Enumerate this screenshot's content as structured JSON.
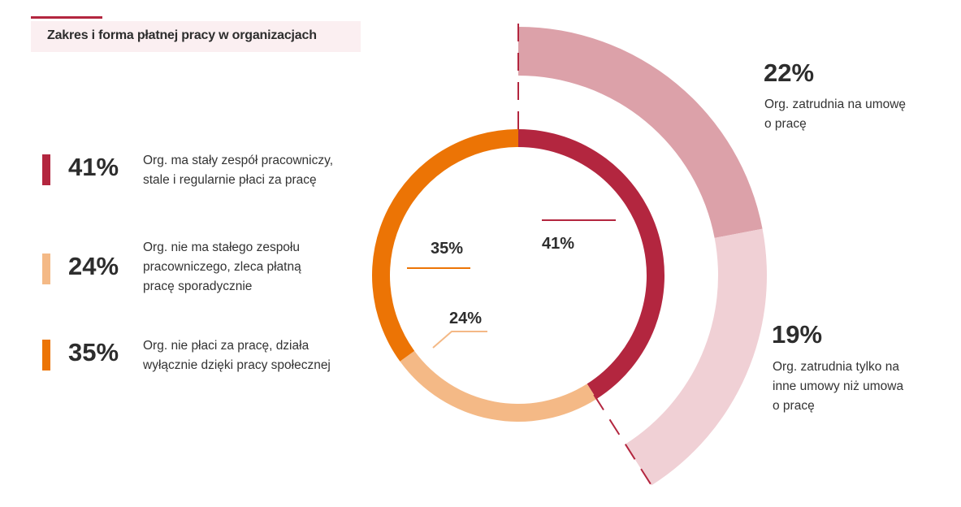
{
  "title": "Zakres i forma płatnej pracy w organizacjach",
  "colors": {
    "stale": "#b3263f",
    "sporadycznie": "#f4b986",
    "spoleczna": "#ec7405",
    "umowa_o_prace": "#dca1a9",
    "inne_umowy": "#f0d0d5",
    "accent": "#b3263f"
  },
  "legend": [
    {
      "pct": "41%",
      "lines": [
        "Org. ma stały zespół pracowniczy,",
        "stale i regularnie płaci za pracę"
      ]
    },
    {
      "pct": "24%",
      "lines": [
        "Org. nie ma stałego zespołu",
        "pracowniczego, zleca płatną",
        "pracę sporadycznie"
      ]
    },
    {
      "pct": "35%",
      "lines": [
        "Org. nie płaci za pracę, działa",
        "wyłącznie dzięki pracy społecznej"
      ]
    }
  ],
  "outer_labels": [
    {
      "pct": "22%",
      "lines": [
        "Org. zatrudnia na umowę",
        "o pracę"
      ]
    },
    {
      "pct": "19%",
      "lines": [
        "Org. zatrudnia tylko na",
        "inne umowy niż umowa",
        "o pracę"
      ]
    }
  ],
  "chart_data": {
    "type": "pie",
    "inner_ring": {
      "slices": [
        {
          "label": "41%",
          "value": 41,
          "color": "#b3263f"
        },
        {
          "label": "24%",
          "value": 24,
          "color": "#f4b986"
        },
        {
          "label": "35%",
          "value": 35,
          "color": "#ec7405"
        }
      ]
    },
    "outer_ring": {
      "slices": [
        {
          "label": "22%",
          "value": 22,
          "color": "#dca1a9"
        },
        {
          "label": "19%",
          "value": 19,
          "color": "#f0d0d5"
        }
      ]
    }
  }
}
